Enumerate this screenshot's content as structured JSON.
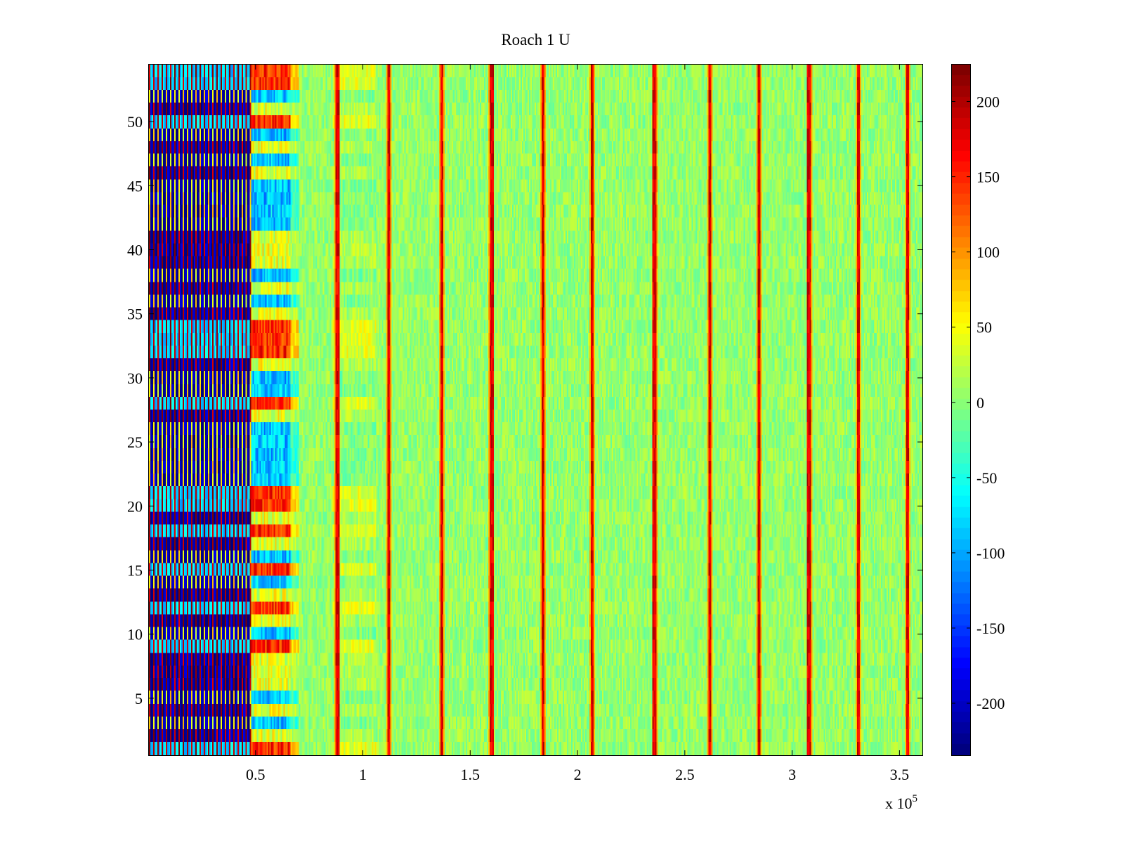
{
  "chart_data": {
    "type": "heatmap",
    "title": "Roach 1 U",
    "xlabel": "",
    "ylabel": "",
    "x_multiplier_label": "x 10",
    "x_multiplier_exponent": "5",
    "xlim": [
      0,
      361000
    ],
    "ylim": [
      0.5,
      54.5
    ],
    "x_ticks": [
      {
        "value": 50000,
        "label": "0.5"
      },
      {
        "value": 100000,
        "label": "1"
      },
      {
        "value": 150000,
        "label": "1.5"
      },
      {
        "value": 200000,
        "label": "2"
      },
      {
        "value": 250000,
        "label": "2.5"
      },
      {
        "value": 300000,
        "label": "3"
      },
      {
        "value": 350000,
        "label": "3.5"
      }
    ],
    "y_ticks": [
      {
        "value": 5,
        "label": "5"
      },
      {
        "value": 10,
        "label": "10"
      },
      {
        "value": 15,
        "label": "15"
      },
      {
        "value": 20,
        "label": "20"
      },
      {
        "value": 25,
        "label": "25"
      },
      {
        "value": 30,
        "label": "30"
      },
      {
        "value": 35,
        "label": "35"
      },
      {
        "value": 40,
        "label": "40"
      },
      {
        "value": 45,
        "label": "45"
      },
      {
        "value": 50,
        "label": "50"
      }
    ],
    "colormap": "jet",
    "color_range": [
      -235,
      225
    ],
    "colorbar_ticks": [
      {
        "value": 200,
        "label": "200"
      },
      {
        "value": 150,
        "label": "150"
      },
      {
        "value": 100,
        "label": "100"
      },
      {
        "value": 50,
        "label": "50"
      },
      {
        "value": 0,
        "label": "0"
      },
      {
        "value": -50,
        "label": "-50"
      },
      {
        "value": -100,
        "label": "-100"
      },
      {
        "value": -150,
        "label": "-150"
      },
      {
        "value": -200,
        "label": "-200"
      }
    ],
    "rows": 54,
    "regions": {
      "early_block_x_end": 66000,
      "early_block_fade_end": 70000,
      "late_plateau_x": [
        86000,
        106000
      ],
      "periodic_spike_x": [
        88000,
        112000,
        137000,
        160000,
        184000,
        207000,
        236000,
        262000,
        285000,
        308000,
        331000,
        354000
      ],
      "periodic_spike_value": 180,
      "background_mean": 5,
      "background_spread": 25,
      "high_rows": [
        1,
        9,
        12,
        15,
        18,
        20,
        21,
        28,
        32,
        33,
        34,
        50,
        53,
        54
      ],
      "low_rows": [
        3,
        5,
        10,
        14,
        16,
        22,
        23,
        24,
        25,
        26,
        29,
        30,
        36,
        38,
        42,
        43,
        44,
        45,
        47,
        49,
        52
      ]
    }
  }
}
